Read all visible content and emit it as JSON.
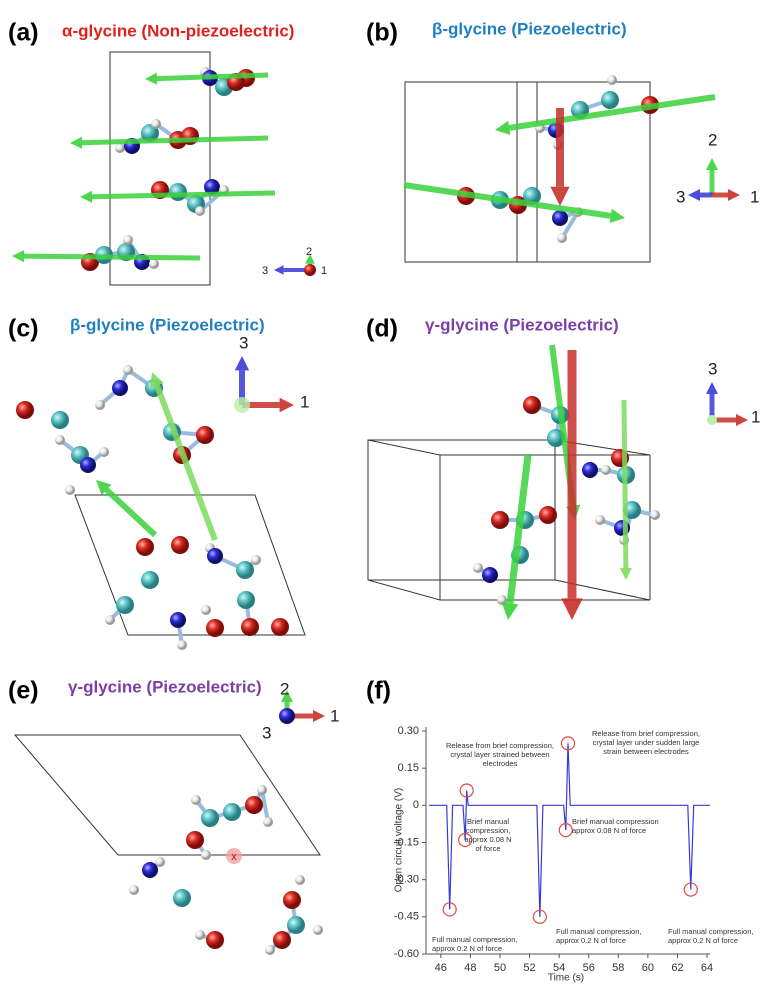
{
  "panels": [
    {
      "label": "(a)",
      "title": "α-glycine (Non-piezoelectric)",
      "axes": [
        "2",
        "3",
        "1"
      ]
    },
    {
      "label": "(b)",
      "title": "β-glycine (Piezoelectric)",
      "axes": [
        "2",
        "3",
        "1"
      ]
    },
    {
      "label": "(c)",
      "title": "β-glycine (Piezoelectric)",
      "axes": [
        "3",
        "1"
      ]
    },
    {
      "label": "(d)",
      "title": "γ-glycine (Piezoelectric)",
      "axes": [
        "3",
        "1"
      ]
    },
    {
      "label": "(e)",
      "title": "γ-glycine (Piezoelectric)",
      "axes": [
        "2",
        "3",
        "1"
      ],
      "marker": "x"
    },
    {
      "label": "(f)"
    }
  ],
  "chart_data": {
    "type": "line",
    "x_label": "Time (s)",
    "y_label": "Open circuit voltage (V)",
    "x": [
      45.2,
      46.4,
      46.6,
      46.8,
      47.5,
      47.65,
      47.75,
      47.85,
      48.0,
      52.5,
      52.7,
      52.9,
      54.3,
      54.45,
      54.6,
      54.75,
      62.7,
      62.9,
      63.1,
      64.2
    ],
    "values": [
      0,
      0,
      -0.42,
      0,
      0,
      -0.14,
      0.06,
      0,
      0,
      0,
      -0.45,
      0,
      0,
      -0.1,
      0.25,
      0,
      0,
      -0.34,
      0,
      0
    ],
    "color": "#3a3ad8",
    "xlim": [
      45,
      64.2
    ],
    "ylim": [
      -0.6,
      0.3
    ],
    "xticks": [
      46,
      48,
      50,
      52,
      54,
      56,
      58,
      60,
      62,
      64
    ],
    "yticks": [
      {
        "value": 0.3,
        "label": "0.30"
      },
      0.15,
      0,
      -0.15,
      {
        "value": -0.3,
        "label": "-0.30"
      },
      -0.45,
      {
        "value": -0.6,
        "label": "-0.60"
      }
    ],
    "annotations": [
      [
        "Release from brief compression,",
        "crystal layer strained between",
        "electrodes"
      ],
      [
        "Release from brief compression,",
        "crystal layer under sudden large",
        "strain between electrodes"
      ],
      [
        "Brief manual",
        "compression,",
        "approx 0.08 N",
        "of force"
      ],
      [
        "Brief manual compression",
        "approx 0.08 N of force"
      ],
      [
        "Full manual compression,",
        "approx 0.2 N of force"
      ],
      [
        "Full manual compression,",
        "approx 0.2 N of force"
      ],
      [
        "Full manual compression,",
        "approx 0.2 N of force"
      ]
    ]
  }
}
